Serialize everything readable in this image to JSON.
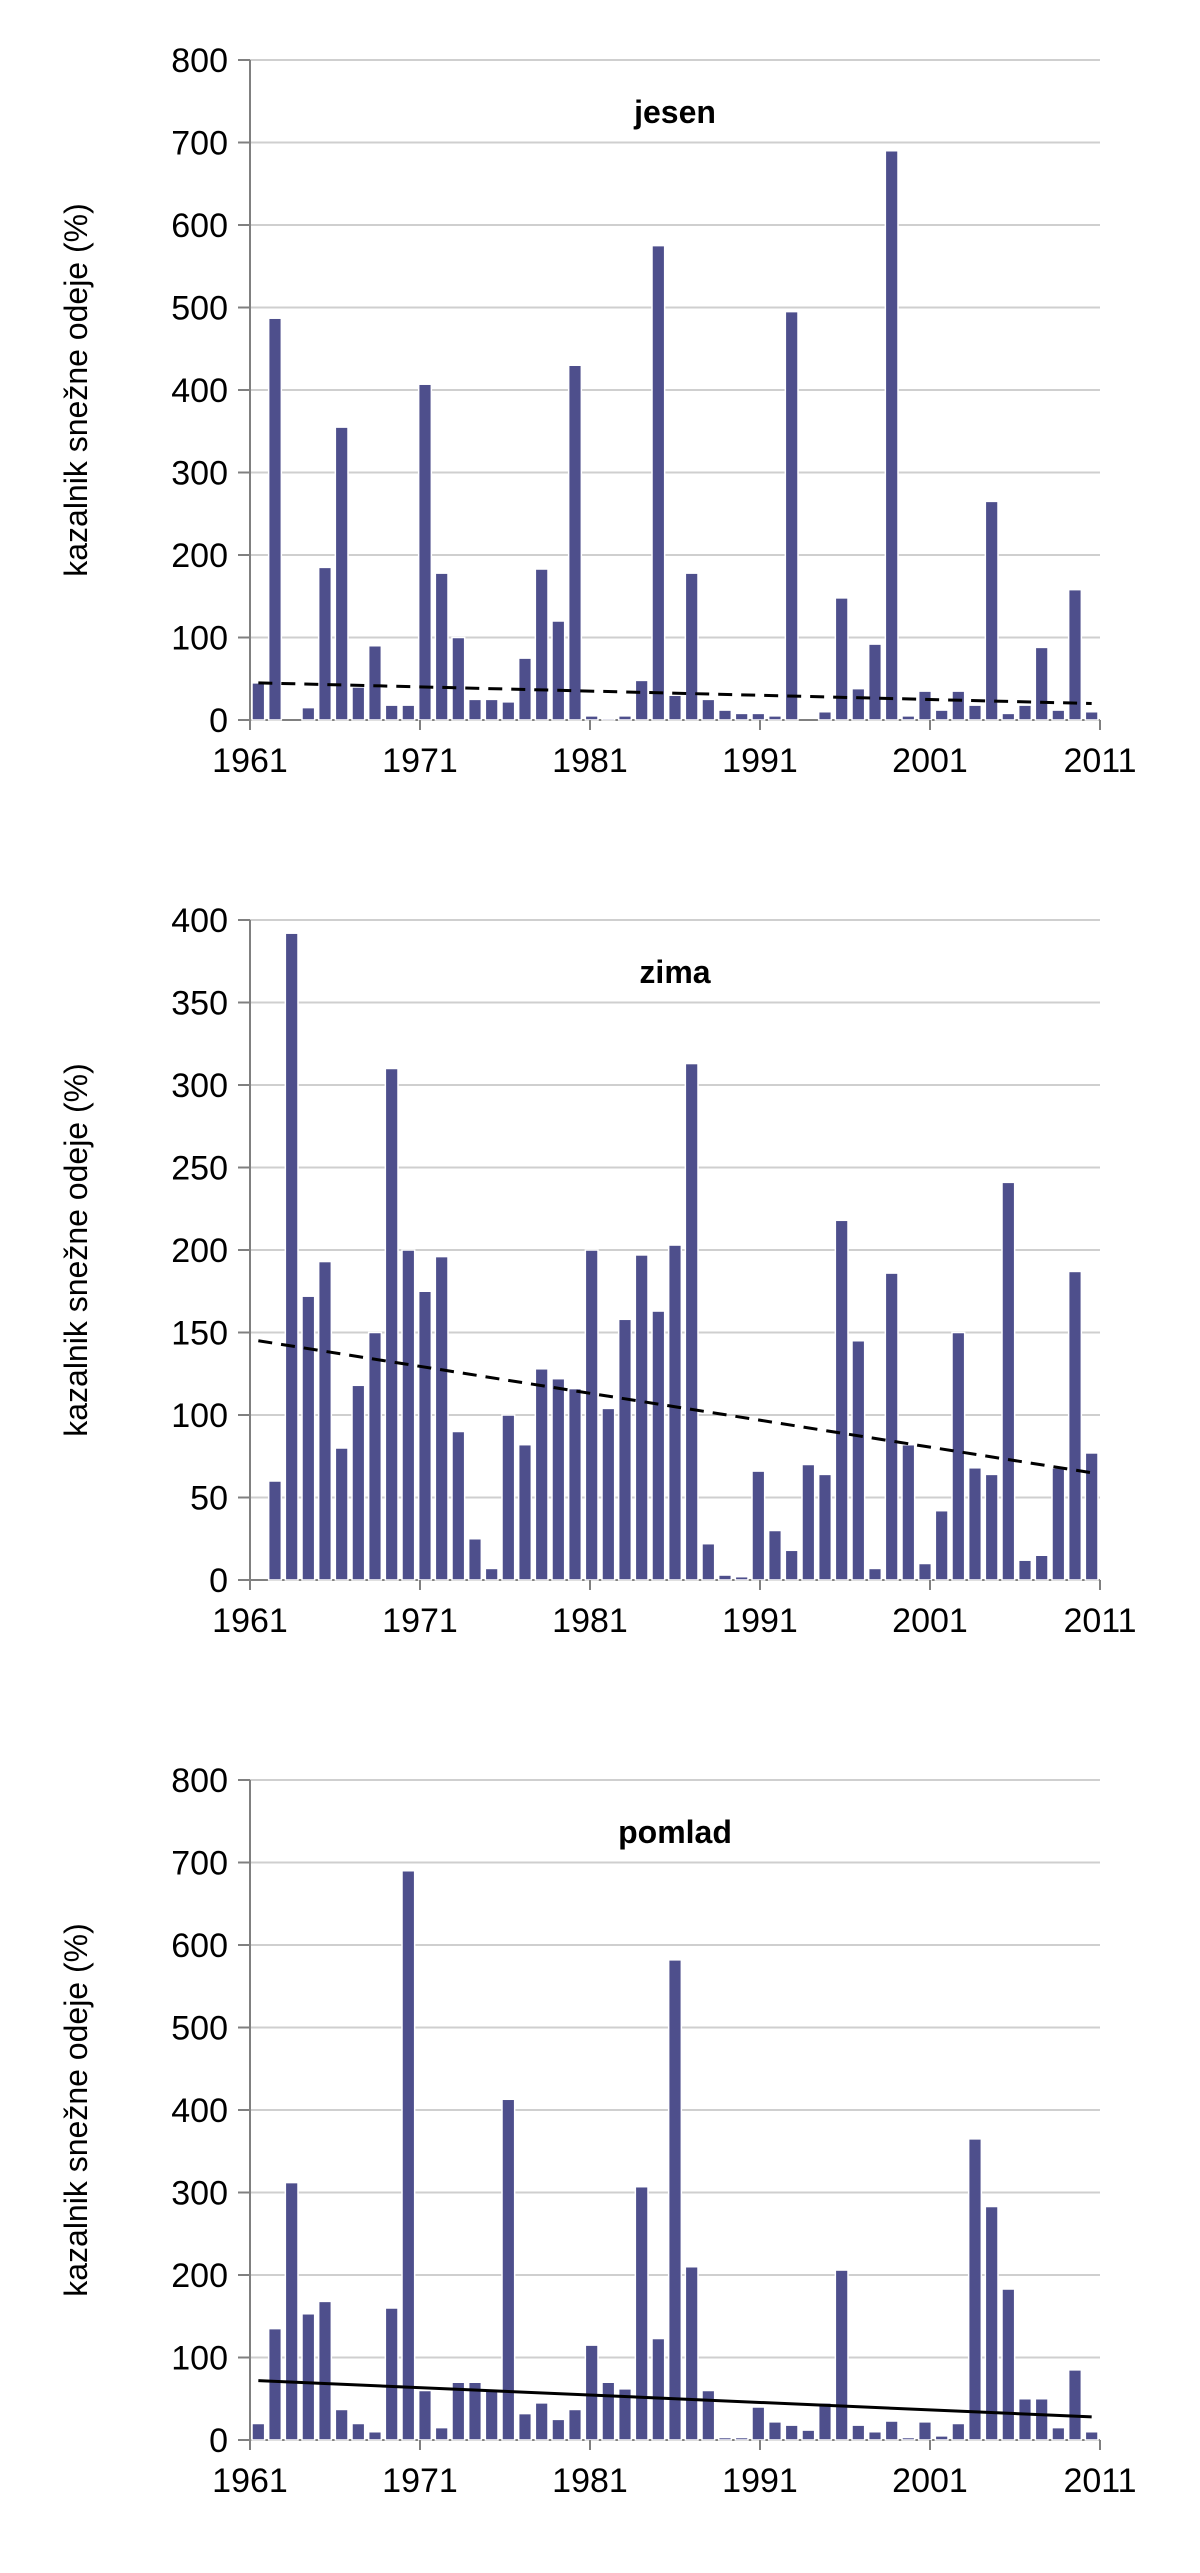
{
  "chart_data": [
    {
      "type": "bar",
      "title": "jesen",
      "ylabel": "kazalnik snežne odeje (%)",
      "xlabel": "",
      "x_tick_labels": [
        "1961",
        "1971",
        "1981",
        "1991",
        "2001",
        "2011"
      ],
      "y_ticks": [
        "0",
        "100",
        "200",
        "300",
        "400",
        "500",
        "600",
        "700",
        "800"
      ],
      "ylim": [
        0,
        800
      ],
      "grid": true,
      "categories": [
        1961,
        1962,
        1963,
        1964,
        1965,
        1966,
        1967,
        1968,
        1969,
        1970,
        1971,
        1972,
        1973,
        1974,
        1975,
        1976,
        1977,
        1978,
        1979,
        1980,
        1981,
        1982,
        1983,
        1984,
        1985,
        1986,
        1987,
        1988,
        1989,
        1990,
        1991,
        1992,
        1993,
        1994,
        1995,
        1996,
        1997,
        1998,
        1999,
        2000,
        2001,
        2002,
        2003,
        2004,
        2005,
        2006,
        2007,
        2008,
        2009,
        2010,
        2011
      ],
      "values": [
        45,
        487,
        0,
        15,
        185,
        355,
        40,
        90,
        18,
        18,
        407,
        178,
        100,
        25,
        25,
        22,
        75,
        183,
        120,
        430,
        5,
        2,
        5,
        48,
        575,
        30,
        178,
        25,
        12,
        8,
        8,
        5,
        495,
        0,
        10,
        148,
        38,
        92,
        690,
        5,
        35,
        12,
        35,
        18,
        265,
        8,
        18,
        88,
        12,
        158,
        10
      ],
      "trend": {
        "style": "dashed",
        "start": 45,
        "end": 20
      }
    },
    {
      "type": "bar",
      "title": "zima",
      "ylabel": "kazalnik snežne odeje (%)",
      "xlabel": "",
      "x_tick_labels": [
        "1961",
        "1971",
        "1981",
        "1991",
        "2001",
        "2011"
      ],
      "y_ticks": [
        "0",
        "50",
        "100",
        "150",
        "200",
        "250",
        "300",
        "350",
        "400"
      ],
      "ylim": [
        0,
        400
      ],
      "grid": true,
      "categories": [
        1961,
        1962,
        1963,
        1964,
        1965,
        1966,
        1967,
        1968,
        1969,
        1970,
        1971,
        1972,
        1973,
        1974,
        1975,
        1976,
        1977,
        1978,
        1979,
        1980,
        1981,
        1982,
        1983,
        1984,
        1985,
        1986,
        1987,
        1988,
        1989,
        1990,
        1991,
        1992,
        1993,
        1994,
        1995,
        1996,
        1997,
        1998,
        1999,
        2000,
        2001,
        2002,
        2003,
        2004,
        2005,
        2006,
        2007,
        2008,
        2009,
        2010,
        2011
      ],
      "values": [
        0,
        60,
        392,
        172,
        193,
        80,
        118,
        150,
        310,
        200,
        175,
        196,
        90,
        25,
        7,
        100,
        82,
        128,
        122,
        116,
        200,
        104,
        158,
        197,
        163,
        203,
        313,
        22,
        3,
        2,
        66,
        30,
        18,
        70,
        64,
        218,
        145,
        7,
        186,
        82,
        10,
        42,
        150,
        68,
        64,
        241,
        12,
        15,
        68,
        187,
        77
      ],
      "trend": {
        "style": "dashed",
        "start": 145,
        "end": 65
      }
    },
    {
      "type": "bar",
      "title": "pomlad",
      "ylabel": "kazalnik snežne odeje (%)",
      "xlabel": "",
      "x_tick_labels": [
        "1961",
        "1971",
        "1981",
        "1991",
        "2001",
        "2011"
      ],
      "y_ticks": [
        "0",
        "100",
        "200",
        "300",
        "400",
        "500",
        "600",
        "700",
        "800"
      ],
      "ylim": [
        0,
        800
      ],
      "grid": true,
      "categories": [
        1961,
        1962,
        1963,
        1964,
        1965,
        1966,
        1967,
        1968,
        1969,
        1970,
        1971,
        1972,
        1973,
        1974,
        1975,
        1976,
        1977,
        1978,
        1979,
        1980,
        1981,
        1982,
        1983,
        1984,
        1985,
        1986,
        1987,
        1988,
        1989,
        1990,
        1991,
        1992,
        1993,
        1994,
        1995,
        1996,
        1997,
        1998,
        1999,
        2000,
        2001,
        2002,
        2003,
        2004,
        2005,
        2006,
        2007,
        2008,
        2009,
        2010,
        2011
      ],
      "values": [
        20,
        135,
        312,
        153,
        168,
        37,
        20,
        10,
        160,
        690,
        60,
        15,
        70,
        70,
        60,
        413,
        32,
        45,
        25,
        37,
        115,
        70,
        62,
        307,
        123,
        582,
        210,
        60,
        3,
        3,
        40,
        22,
        18,
        12,
        45,
        206,
        18,
        10,
        23,
        3,
        22,
        5,
        20,
        365,
        283,
        183,
        50,
        50,
        15,
        85,
        10
      ],
      "trend": {
        "style": "solid",
        "start": 72,
        "end": 28
      }
    }
  ]
}
